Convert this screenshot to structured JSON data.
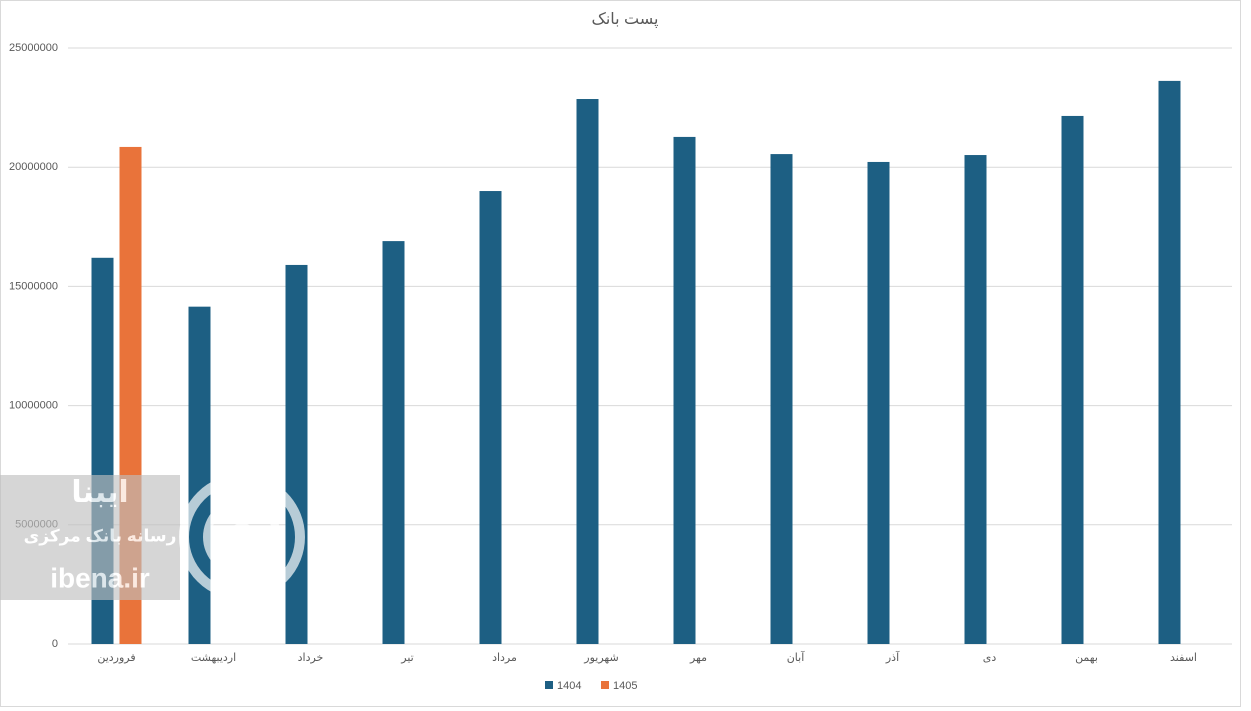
{
  "chart_data": {
    "type": "bar",
    "title": "پست بانک",
    "categories": [
      "فروردین",
      "اردیبهشت",
      "خرداد",
      "تیر",
      "مرداد",
      "شهریور",
      "مهر",
      "آبان",
      "آذر",
      "دی",
      "بهمن",
      "اسفند"
    ],
    "series": [
      {
        "name": "1404",
        "color": "#1d5f83",
        "values": [
          16200000,
          14150000,
          15900000,
          16900000,
          19000000,
          22860000,
          21270000,
          20550000,
          20220000,
          20510000,
          22150000,
          23620000
        ]
      },
      {
        "name": "1405",
        "color": "#e9733a",
        "values": [
          20850000,
          null,
          null,
          null,
          null,
          null,
          null,
          null,
          null,
          null,
          null,
          null
        ]
      }
    ],
    "ylim": [
      0,
      25000000
    ],
    "yticks": [
      0,
      5000000,
      10000000,
      15000000,
      20000000,
      25000000
    ],
    "grid": true,
    "legend": "bottom"
  },
  "watermark": {
    "lines": [
      "ایبنا",
      "رسانه بانک مرکزی",
      "ibena.ir"
    ]
  }
}
